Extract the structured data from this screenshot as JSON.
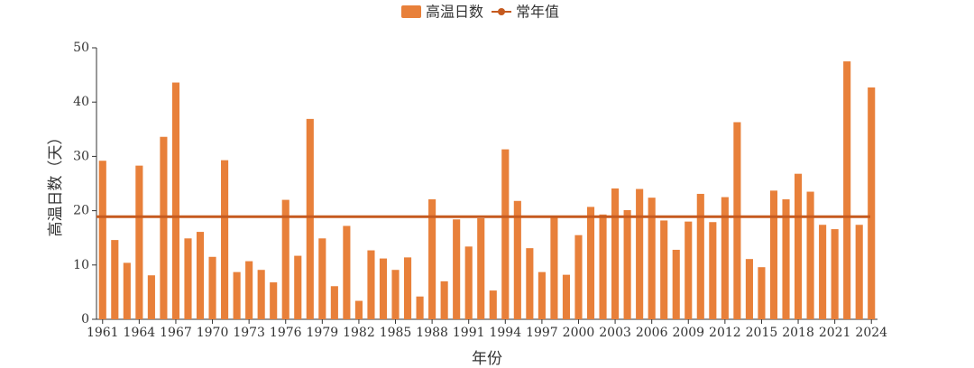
{
  "chart_data": {
    "type": "bar",
    "x_label": "年份",
    "y_label": "高温日数（天）",
    "categories": [
      "1961",
      null,
      null,
      "1964",
      null,
      null,
      "1967",
      null,
      null,
      "1970",
      null,
      null,
      "1973",
      null,
      null,
      "1976",
      null,
      null,
      "1979",
      null,
      null,
      "1982",
      null,
      null,
      "1985",
      null,
      null,
      "1988",
      null,
      null,
      "1991",
      null,
      null,
      "1994",
      null,
      null,
      "1997",
      null,
      null,
      "2000",
      null,
      null,
      "2003",
      null,
      null,
      "2006",
      null,
      null,
      "2009",
      null,
      null,
      "2012",
      null,
      null,
      "2015",
      null,
      null,
      "2018",
      null,
      null,
      "2021",
      null,
      null,
      "2024"
    ],
    "series": [
      {
        "name": "高温日数",
        "color": "#e8803a",
        "values": [
          29.2,
          14.6,
          10.4,
          28.3,
          8.1,
          33.6,
          43.6,
          14.9,
          16.1,
          11.5,
          29.3,
          8.7,
          10.7,
          9.1,
          6.8,
          22.0,
          11.7,
          36.9,
          14.9,
          6.1,
          17.2,
          3.4,
          12.7,
          11.2,
          9.1,
          11.4,
          4.2,
          22.1,
          7.0,
          18.4,
          13.4,
          18.6,
          5.3,
          31.3,
          21.8,
          13.1,
          8.7,
          19.0,
          8.2,
          15.5,
          20.7,
          19.3,
          24.1,
          20.1,
          24.0,
          22.4,
          18.2,
          12.8,
          18.0,
          23.1,
          17.9,
          22.5,
          36.3,
          11.1,
          9.6,
          23.7,
          22.1,
          26.8,
          23.5,
          17.4,
          16.6,
          47.5,
          17.4,
          42.7
        ]
      },
      {
        "name": "常年值",
        "color": "#c55a1f",
        "type": "hline",
        "value": 18.9
      }
    ],
    "ylim": [
      0,
      50
    ],
    "yticks": [
      0,
      10,
      20,
      30,
      40,
      50
    ],
    "grid": false,
    "legend": "top"
  }
}
